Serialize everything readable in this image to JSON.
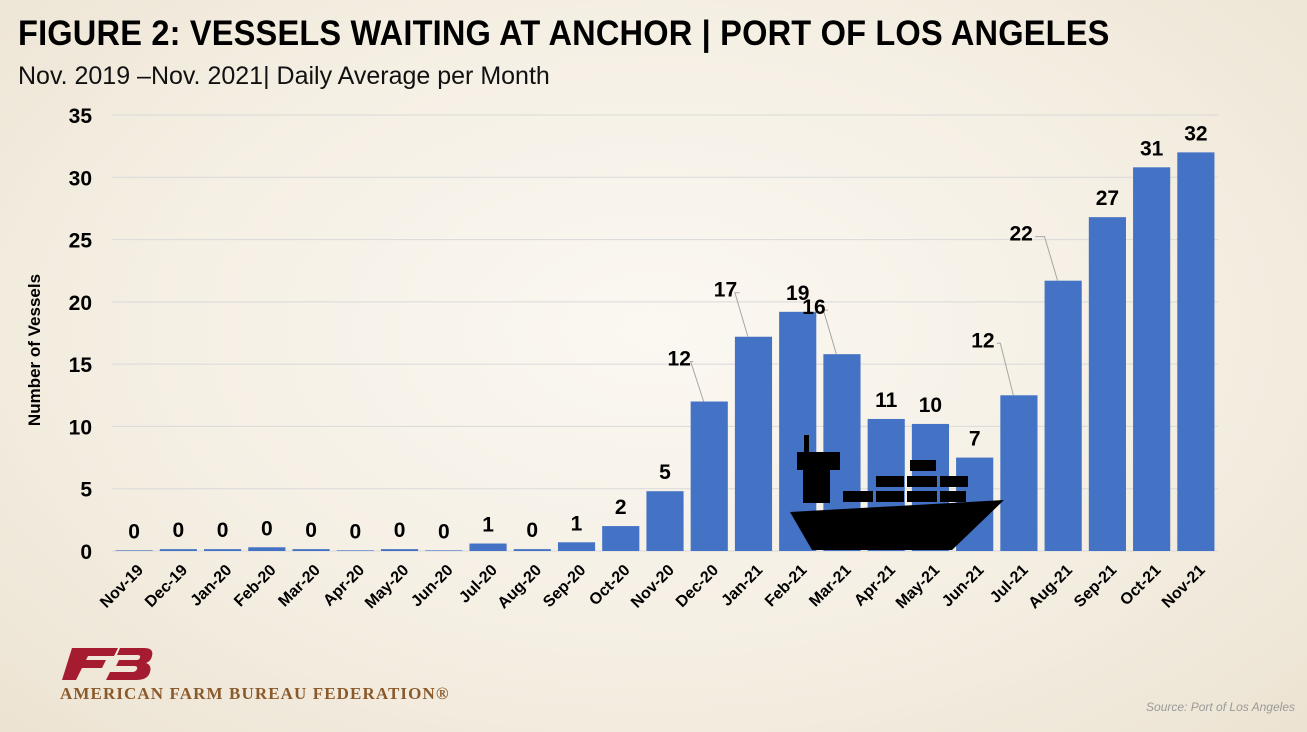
{
  "title": "FIGURE 2: VESSELS WAITING AT ANCHOR | PORT OF LOS ANGELES",
  "subtitle": "Nov. 2019 –Nov. 2021| Daily Average per Month",
  "source": "Source: Port of Los Angeles",
  "org_name": "AMERICAN FARM BUREAU FEDERATION®",
  "logo_icon": "afbf-logo-icon",
  "ship_icon": "container-ship-icon",
  "colors": {
    "bar": "#4472c4",
    "grid": "#d9d9d9",
    "logo_red": "#a51c30",
    "text": "#000000"
  },
  "chart_data": {
    "type": "bar",
    "title": "FIGURE 2: VESSELS WAITING AT ANCHOR | PORT OF LOS ANGELES",
    "xlabel": "",
    "ylabel": "Number of Vessels",
    "ylim": [
      0,
      35
    ],
    "yticks": [
      0,
      5,
      10,
      15,
      20,
      25,
      30,
      35
    ],
    "grid": true,
    "categories": [
      "Nov-19",
      "Dec-19",
      "Jan-20",
      "Feb-20",
      "Mar-20",
      "Apr-20",
      "May-20",
      "Jun-20",
      "Jul-20",
      "Aug-20",
      "Sep-20",
      "Oct-20",
      "Nov-20",
      "Dec-20",
      "Jan-21",
      "Feb-21",
      "Mar-21",
      "Apr-21",
      "May-21",
      "Jun-21",
      "Jul-21",
      "Aug-21",
      "Sep-21",
      "Oct-21",
      "Nov-21"
    ],
    "values": [
      0.05,
      0.15,
      0.15,
      0.3,
      0.15,
      0.05,
      0.15,
      0.05,
      0.6,
      0.15,
      0.7,
      2.0,
      4.8,
      12.0,
      17.2,
      19.2,
      15.8,
      10.6,
      10.2,
      7.5,
      12.5,
      21.7,
      26.8,
      30.8,
      32.0
    ],
    "data_labels": [
      "0",
      "0",
      "0",
      "0",
      "0",
      "0",
      "0",
      "0",
      "1",
      "0",
      "1",
      "2",
      "5",
      "12",
      "17",
      "19",
      "16",
      "11",
      "10",
      "7",
      "12",
      "22",
      "27",
      "31",
      "32"
    ]
  }
}
